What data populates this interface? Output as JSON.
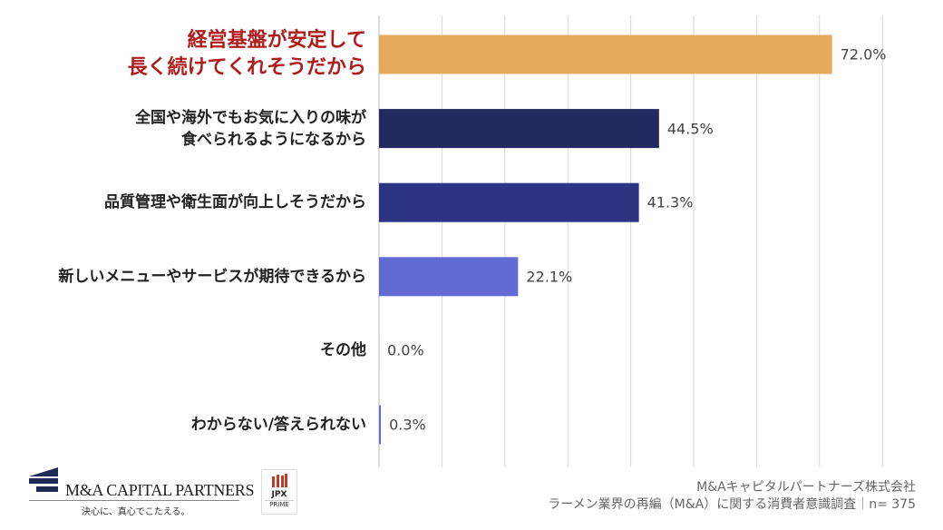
{
  "chart_data": {
    "type": "bar",
    "orientation": "horizontal",
    "categories": [
      "経営基盤が安定して\n長く続けてくれそうだから",
      "全国や海外でもお気に入りの味が\n食べられるようになるから",
      "品質管理や衛生面が向上しそうだから",
      "新しいメニューやサービスが期待できるから",
      "その他",
      "わからない/答えられない"
    ],
    "values": [
      72.0,
      44.5,
      41.3,
      22.1,
      0.0,
      0.3
    ],
    "value_labels": [
      "72.0%",
      "44.5%",
      "41.3%",
      "22.1%",
      "0.0%",
      "0.3%"
    ],
    "colors": [
      "#e5a95a",
      "#232a5f",
      "#2c3482",
      "#626bd3",
      "#626bd3",
      "#626bd3"
    ],
    "highlight_color": "#b01c1c",
    "xlim": [
      0,
      80
    ],
    "grid": true,
    "gridline_step": 10
  },
  "footer": {
    "company_logo": "M&A CAPITAL PARTNERS",
    "tagline": "決心に、真心でこたえる。",
    "jpx_logo": "JPX",
    "jpx_sub": "PRIME",
    "source_line1": "M&Aキャピタルパートナーズ株式会社",
    "source_line2": "ラーメン業界の再編（M&A）に関する消費者意識調査｜n= 375"
  }
}
